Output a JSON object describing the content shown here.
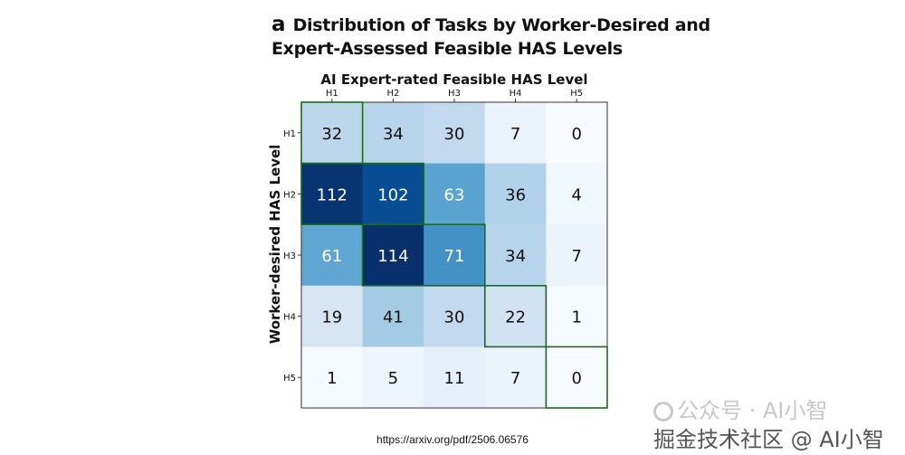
{
  "title": {
    "panel_letter": "a",
    "line1": "Distribution of Tasks by Worker-Desired and",
    "line2": "Expert-Assessed Feasible HAS Levels"
  },
  "chart_data": {
    "type": "heatmap",
    "xlabel": "AI Expert-rated Feasible HAS Level",
    "ylabel": "Worker-desired HAS Level",
    "x_categories": [
      "H1",
      "H2",
      "H3",
      "H4",
      "H5"
    ],
    "y_categories": [
      "H1",
      "H2",
      "H3",
      "H4",
      "H5"
    ],
    "values": [
      [
        32,
        34,
        30,
        7,
        0
      ],
      [
        112,
        102,
        63,
        36,
        4
      ],
      [
        61,
        114,
        71,
        34,
        7
      ],
      [
        19,
        41,
        30,
        22,
        1
      ],
      [
        1,
        5,
        11,
        7,
        0
      ]
    ],
    "colormap": "Blues",
    "vmax": 114,
    "outline_color": "#1a6b1a",
    "highlighted_staircase": [
      {
        "row": 0,
        "cols": [
          0
        ]
      },
      {
        "row": 1,
        "cols": [
          0,
          1
        ]
      },
      {
        "row": 2,
        "cols": [
          1,
          2
        ]
      },
      {
        "row": 3,
        "cols": [
          3
        ]
      },
      {
        "row": 4,
        "cols": [
          4
        ]
      }
    ]
  },
  "source_url": "https://arxiv.org/pdf/2506.06576",
  "watermark": {
    "line1": "公众号 · AI小智",
    "line2": "掘金技术社区 @ AI小智"
  }
}
